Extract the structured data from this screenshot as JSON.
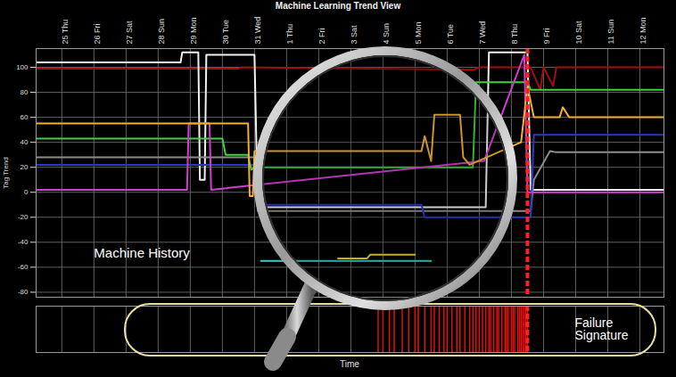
{
  "chart_data": {
    "type": "line",
    "title": "Machine Learning Trend View",
    "y_label": "Tag Trend",
    "x_label": "Time",
    "xlim": [
      -0.8,
      18.75
    ],
    "xticks": [
      {
        "value": 0,
        "label": "25 Thu"
      },
      {
        "value": 1,
        "label": "26 Fri"
      },
      {
        "value": 2,
        "label": "27 Sat"
      },
      {
        "value": 3,
        "label": "28 Sun"
      },
      {
        "value": 4,
        "label": "29 Mon"
      },
      {
        "value": 5,
        "label": "30 Tue"
      },
      {
        "value": 6,
        "label": "31 Wed"
      },
      {
        "value": 7,
        "label": "1 Thu"
      },
      {
        "value": 8,
        "label": "2 Fri"
      },
      {
        "value": 9,
        "label": "3 Sat"
      },
      {
        "value": 10,
        "label": "4 Sun"
      },
      {
        "value": 11,
        "label": "5 Mon"
      },
      {
        "value": 12,
        "label": "6 Tue"
      },
      {
        "value": 13,
        "label": "7 Wed"
      },
      {
        "value": 14,
        "label": "8 Thu"
      },
      {
        "value": 15,
        "label": "9 Fri"
      },
      {
        "value": 16,
        "label": "10 Sat"
      },
      {
        "value": 17,
        "label": "11 Sun"
      },
      {
        "value": 18,
        "label": "12 Mon"
      }
    ],
    "ylim": [
      -84,
      115
    ],
    "yticks": [
      -80,
      -60,
      -40,
      -20,
      0,
      20,
      40,
      60,
      80,
      100
    ],
    "grid": true,
    "series": [
      {
        "color": "#a01010",
        "x": [
          -0.8,
          5.5,
          5.6,
          12.8,
          13.0,
          14.6,
          14.9,
          15.0,
          15.3,
          15.4,
          18.75
        ],
        "values": [
          99,
          99,
          100,
          98,
          100,
          100,
          82,
          100,
          85,
          100,
          100
        ]
      },
      {
        "color": "#f0f0f0",
        "x": [
          -0.8,
          3.7,
          3.75,
          4.25,
          4.3,
          4.45,
          4.5,
          6.0,
          6.1,
          13.2,
          13.3,
          14.5,
          14.6,
          18.75
        ],
        "values": [
          104,
          104,
          112,
          112,
          10,
          10,
          110,
          110,
          -12,
          -12,
          112,
          112,
          2,
          2
        ]
      },
      {
        "color": "#8c8c8c",
        "x": [
          -0.8,
          6.0,
          6.1,
          14.6,
          14.7,
          15.2,
          15.4,
          18.75
        ],
        "values": [
          28,
          28,
          -15,
          -15,
          10,
          33,
          32,
          32
        ]
      },
      {
        "color": "#2838c8",
        "x": [
          -0.8,
          6.0,
          6.1,
          11.2,
          11.3,
          14.6,
          14.7,
          18.75
        ],
        "values": [
          22,
          22,
          -10,
          -10,
          -20,
          -20,
          46,
          46
        ]
      },
      {
        "color": "#40d040",
        "x": [
          -0.8,
          5.0,
          5.1,
          5.8,
          5.9,
          6.0,
          12.8,
          12.9,
          14.5,
          14.6,
          18.75
        ],
        "values": [
          43,
          43,
          30,
          30,
          18,
          20,
          20,
          88,
          88,
          82,
          82
        ]
      },
      {
        "color": "#d040d0",
        "x": [
          -0.8,
          3.9,
          3.95,
          4.6,
          4.65,
          13.1,
          13.15,
          14.4,
          14.5,
          18.75
        ],
        "values": [
          2,
          2,
          55,
          55,
          2,
          25,
          25,
          110,
          0,
          0
        ]
      },
      {
        "color": "#40c8c8",
        "x": [
          6.2,
          11.5
        ],
        "values": [
          -55,
          -55
        ]
      },
      {
        "color": "#e8d020",
        "x": [
          8.6,
          9.5,
          9.6,
          11.0
        ],
        "values": [
          -53,
          -53,
          -50,
          -50
        ]
      },
      {
        "color": "#f0b030",
        "x": [
          -0.8,
          5.8,
          5.85,
          5.95,
          6.0,
          11.2,
          11.3,
          11.5,
          11.6,
          12.4,
          12.5,
          12.7,
          14.3,
          14.5,
          14.7,
          15.5,
          15.6,
          15.8,
          18.75
        ],
        "values": [
          55,
          55,
          -3,
          -3,
          33,
          33,
          45,
          25,
          62,
          62,
          28,
          22,
          40,
          85,
          60,
          60,
          68,
          60,
          60
        ]
      }
    ],
    "annotations": [
      {
        "text": "Machine History",
        "x": 1.0,
        "y": -49
      }
    ],
    "markers": [
      {
        "x": 14.5,
        "color": "#ff2020",
        "line_style": "dashed"
      }
    ],
    "failure_signature": {
      "label": "Failure Signature",
      "color": "#e01010",
      "times": [
        9.85,
        10.0,
        10.2,
        10.35,
        10.6,
        10.8,
        11.0,
        11.1,
        11.3,
        11.5,
        11.6,
        11.75,
        11.9,
        12.0,
        12.15,
        12.3,
        12.4,
        12.55,
        12.7,
        12.8,
        12.9,
        13.0,
        13.1,
        13.2,
        13.3,
        13.35,
        13.45,
        13.55,
        13.6,
        13.7,
        13.8,
        13.85,
        13.9,
        14.0,
        14.05,
        14.1,
        14.2,
        14.25,
        14.3,
        14.35,
        14.4,
        14.45,
        14.5
      ]
    }
  }
}
